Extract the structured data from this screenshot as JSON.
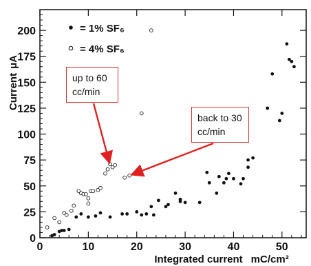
{
  "chart_data": {
    "type": "scatter",
    "xlabel": "Integrated current",
    "xunit": "mC/cm²",
    "ylabel": "Current",
    "yunit": "μA",
    "xlim": [
      0,
      55
    ],
    "ylim": [
      0,
      220
    ],
    "xticks": [
      0,
      10,
      20,
      30,
      40,
      50
    ],
    "yticks": [
      0,
      25,
      50,
      75,
      100,
      125,
      150,
      175,
      200
    ],
    "legend_position": "top-left",
    "series": [
      {
        "name": "= 1% SF₆",
        "marker": "filled",
        "points": [
          [
            2.5,
            2
          ],
          [
            3,
            3
          ],
          [
            4,
            6
          ],
          [
            4.5,
            7
          ],
          [
            5,
            7
          ],
          [
            6,
            8
          ],
          [
            7.5,
            20
          ],
          [
            8.5,
            23
          ],
          [
            10,
            20
          ],
          [
            11.5,
            21
          ],
          [
            12.5,
            24
          ],
          [
            14.5,
            20
          ],
          [
            17,
            23
          ],
          [
            18,
            23
          ],
          [
            20,
            25
          ],
          [
            21,
            22
          ],
          [
            22,
            23
          ],
          [
            23,
            30
          ],
          [
            23.5,
            22
          ],
          [
            24.5,
            36
          ],
          [
            26,
            30
          ],
          [
            26.5,
            32
          ],
          [
            28,
            43
          ],
          [
            29,
            35
          ],
          [
            29,
            37
          ],
          [
            30,
            34
          ],
          [
            33,
            34
          ],
          [
            34.5,
            63
          ],
          [
            35,
            53
          ],
          [
            36.5,
            43
          ],
          [
            37,
            59
          ],
          [
            38,
            53
          ],
          [
            38.5,
            57
          ],
          [
            39,
            62
          ],
          [
            40,
            57
          ],
          [
            41.5,
            52
          ],
          [
            42,
            57
          ],
          [
            43,
            75
          ],
          [
            43,
            68
          ],
          [
            44,
            77
          ],
          [
            47,
            125
          ],
          [
            48,
            158
          ],
          [
            49.5,
            113
          ],
          [
            50,
            120
          ],
          [
            51,
            187
          ],
          [
            51.5,
            172
          ],
          [
            52,
            170
          ],
          [
            52.5,
            165
          ]
        ]
      },
      {
        "name": "= 4% SF₆",
        "marker": "open",
        "points": [
          [
            1.5,
            10
          ],
          [
            3,
            19
          ],
          [
            4,
            15
          ],
          [
            5,
            24
          ],
          [
            5.5,
            22
          ],
          [
            6.5,
            26
          ],
          [
            7,
            31
          ],
          [
            8,
            45
          ],
          [
            8.5,
            43
          ],
          [
            9,
            42
          ],
          [
            9.5,
            42
          ],
          [
            10,
            33
          ],
          [
            10,
            38
          ],
          [
            10.5,
            45
          ],
          [
            11,
            45
          ],
          [
            12,
            46
          ],
          [
            12.5,
            48
          ],
          [
            13.5,
            62
          ],
          [
            14,
            66
          ],
          [
            14.5,
            71
          ],
          [
            15,
            68
          ],
          [
            15.5,
            70
          ],
          [
            17.5,
            58
          ],
          [
            18.5,
            60
          ],
          [
            21,
            120
          ],
          [
            23,
            200
          ]
        ]
      }
    ],
    "annotations": [
      {
        "text": "up to 60\ncc/min",
        "arrow_to": [
          14.5,
          70
        ]
      },
      {
        "text": "back to 30\ncc/min",
        "arrow_to": [
          18.5,
          60
        ]
      }
    ]
  }
}
